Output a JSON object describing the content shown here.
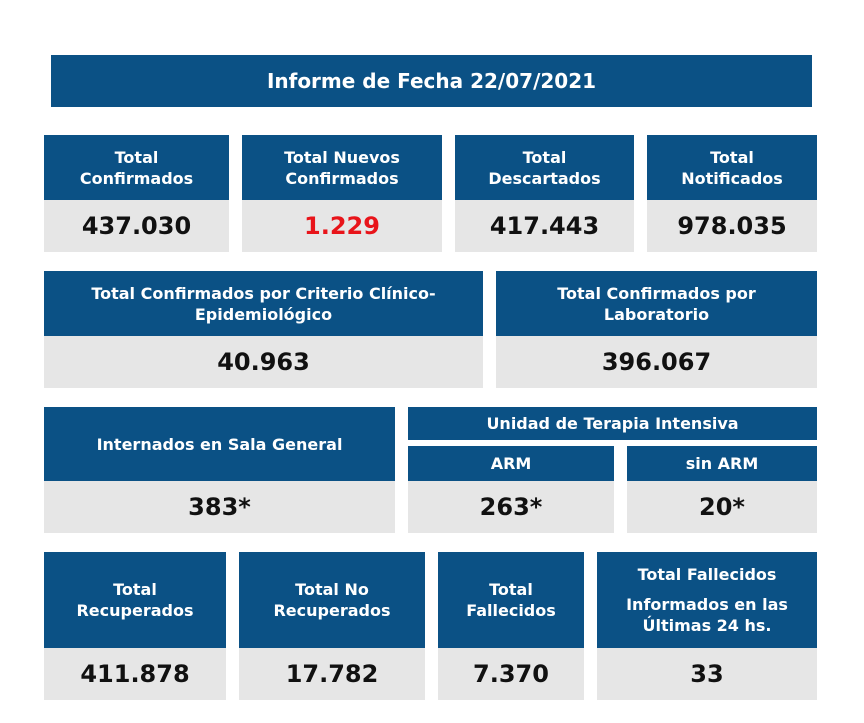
{
  "title": "Informe de Fecha 22/07/2021",
  "row1": [
    {
      "label": "Total\nConfirmados",
      "value": "437.030"
    },
    {
      "label": "Total Nuevos\nConfirmados",
      "value": "1.229",
      "highlight_color": "#e8141a"
    },
    {
      "label": "Total\nDescartados",
      "value": "417.443"
    },
    {
      "label": "Total\nNotificados",
      "value": "978.035"
    }
  ],
  "row2": [
    {
      "label": "Total Confirmados por Criterio Clínico-\nEpidemiológico",
      "value": "40.963"
    },
    {
      "label": "Total Confirmados por\nLaboratorio",
      "value": "396.067"
    }
  ],
  "row3": {
    "general": {
      "label": "Internados en Sala General",
      "value": "383*"
    },
    "uti": {
      "label": "Unidad de Terapia Intensiva",
      "arm": {
        "label": "ARM",
        "value": "263*"
      },
      "sin_arm": {
        "label": "sin ARM",
        "value": "20*"
      }
    }
  },
  "row4": [
    {
      "label": "Total\nRecuperados",
      "value": "411.878"
    },
    {
      "label": "Total No\nRecuperados",
      "value": "17.782"
    },
    {
      "label": "Total\nFallecidos",
      "value": "7.370"
    },
    {
      "label": "Total Fallecidos",
      "sublabel": "Informados en las\nÚltimas 24 hs.",
      "value": "33"
    }
  ],
  "colors": {
    "header_bg": "#0b5185",
    "value_bg": "#e6e6e6",
    "highlight": "#e8141a"
  }
}
